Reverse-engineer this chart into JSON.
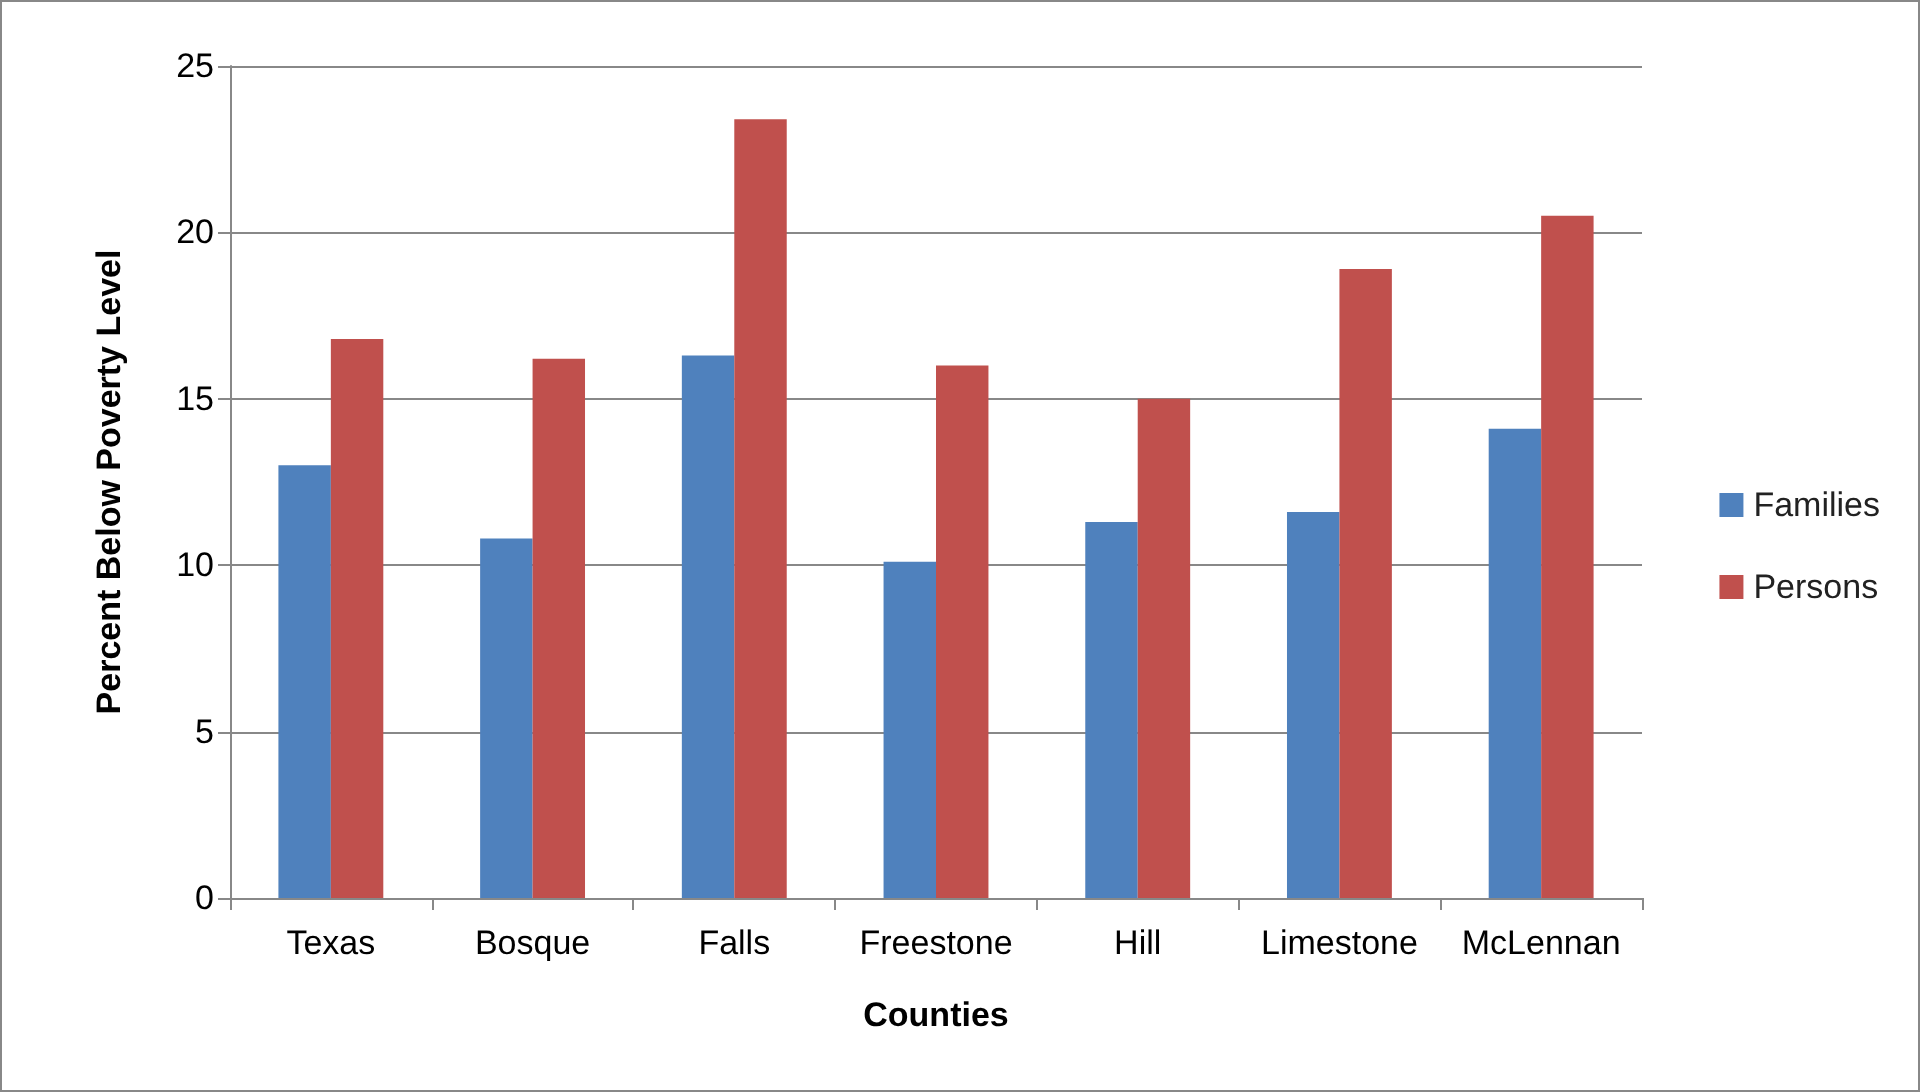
{
  "chart_data": {
    "type": "bar",
    "xlabel": "Counties",
    "ylabel": "Percent Below Poverty Level",
    "categories": [
      "Texas",
      "Bosque",
      "Falls",
      "Freestone",
      "Hill",
      "Limestone",
      "McLennan"
    ],
    "series": [
      {
        "name": "Families",
        "color": "#4f81bd",
        "values": [
          13.0,
          10.8,
          16.3,
          10.1,
          11.3,
          11.6,
          14.1
        ]
      },
      {
        "name": "Persons",
        "color": "#c0504d",
        "values": [
          16.8,
          16.2,
          23.4,
          16.0,
          15.0,
          18.9,
          20.5
        ]
      }
    ],
    "ylim": [
      0,
      25
    ],
    "yticks": [
      0,
      5,
      10,
      15,
      20,
      25
    ],
    "grid": "y",
    "legend": "right"
  }
}
